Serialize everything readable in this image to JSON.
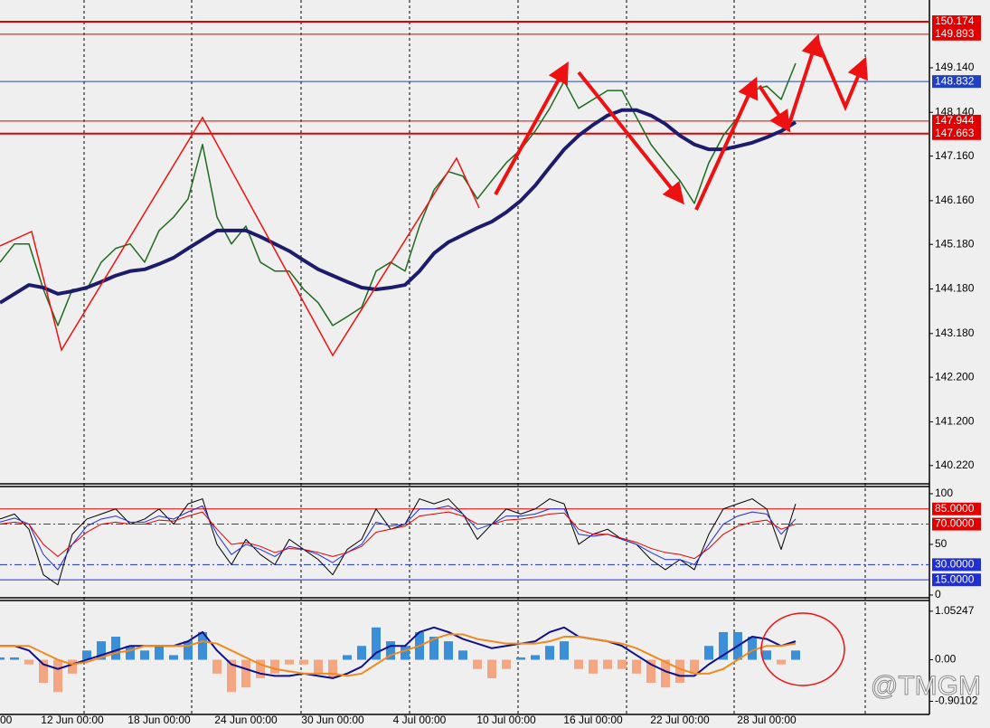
{
  "watermark": "@TMGM",
  "chart_data": [
    {
      "type": "line",
      "categories": [
        "00",
        null,
        null,
        null,
        null,
        "12 Jun 00:00",
        null,
        null,
        null,
        null,
        null,
        "18 Jun 00:00",
        null,
        null,
        null,
        null,
        null,
        "24 Jun 00:00",
        null,
        null,
        null,
        null,
        null,
        "30 Jun 00:00",
        null,
        null,
        null,
        null,
        null,
        "4 Jul 00:00",
        null,
        null,
        null,
        null,
        null,
        "10 Jul 00:00",
        null,
        null,
        null,
        null,
        null,
        "16 Jul 00:00",
        null,
        null,
        null,
        null,
        null,
        "22 Jul 00:00",
        null,
        null,
        null,
        null,
        null,
        "28 Jul 00:00",
        null,
        null
      ],
      "series": [
        {
          "color": "#1f6b1f",
          "width": 1.5,
          "values": [
            144.78,
            145.19,
            145.19,
            144.17,
            143.36,
            144.17,
            144.17,
            144.78,
            145.09,
            145.19,
            144.78,
            145.49,
            145.79,
            146.2,
            147.42,
            145.79,
            145.19,
            145.59,
            144.78,
            144.58,
            144.58,
            144.17,
            143.87,
            143.36,
            143.56,
            143.77,
            144.58,
            144.78,
            144.58,
            145.59,
            146.4,
            146.81,
            146.71,
            146.2,
            146.61,
            147.01,
            147.31,
            147.72,
            148.23,
            148.84,
            148.23,
            148.43,
            148.63,
            148.63,
            148.03,
            147.42,
            147.01,
            146.61,
            146.1,
            147.01,
            147.62,
            148.03,
            148.63,
            148.73,
            148.43,
            149.24
          ]
        },
        {
          "color": "#1c1c6b",
          "width": 4,
          "values": [
            143.87,
            144.07,
            144.27,
            144.21,
            144.07,
            144.13,
            144.21,
            144.34,
            144.48,
            144.58,
            144.62,
            144.74,
            144.88,
            145.09,
            145.29,
            145.49,
            145.49,
            145.49,
            145.35,
            145.19,
            145.03,
            144.82,
            144.62,
            144.48,
            144.34,
            144.21,
            144.17,
            144.21,
            144.27,
            144.58,
            144.98,
            145.23,
            145.39,
            145.55,
            145.69,
            145.9,
            146.16,
            146.5,
            146.91,
            147.31,
            147.62,
            147.86,
            148.07,
            148.19,
            148.19,
            148.07,
            147.88,
            147.62,
            147.42,
            147.31,
            147.31,
            147.38,
            147.46,
            147.58,
            147.72,
            147.92
          ]
        }
      ],
      "ylim": [
        139.81,
        150.66
      ],
      "yticks": [
        {
          "value": 149.14,
          "label": "149.140"
        },
        {
          "value": 148.14,
          "label": "148.140"
        },
        {
          "value": 147.16,
          "label": "147.160"
        },
        {
          "value": 146.16,
          "label": "146.160"
        },
        {
          "value": 145.18,
          "label": "145.180"
        },
        {
          "value": 144.18,
          "label": "144.180"
        },
        {
          "value": 143.18,
          "label": "143.180"
        },
        {
          "value": 142.2,
          "label": "142.200"
        },
        {
          "value": 141.2,
          "label": "141.200"
        },
        {
          "value": 140.22,
          "label": "140.220"
        }
      ],
      "levels": [
        {
          "value": 150.174,
          "color": "#e00000",
          "width": 2
        },
        {
          "value": 149.893,
          "color": "#e00000",
          "width": 1
        },
        {
          "value": 148.832,
          "color": "#2040c0",
          "width": 1
        },
        {
          "value": 147.944,
          "color": "#e00000",
          "width": 1
        },
        {
          "value": 147.663,
          "color": "#e00000",
          "width": 2
        }
      ]
    },
    {
      "type": "line",
      "series": [
        {
          "color": "#000000",
          "width": 1,
          "values": [
            75,
            80,
            65,
            20,
            10,
            60,
            75,
            80,
            85,
            70,
            75,
            85,
            70,
            90,
            95,
            50,
            30,
            55,
            40,
            30,
            55,
            45,
            35,
            20,
            45,
            55,
            85,
            65,
            70,
            95,
            90,
            95,
            80,
            55,
            70,
            85,
            80,
            85,
            95,
            90,
            50,
            60,
            65,
            55,
            50,
            35,
            25,
            35,
            25,
            60,
            85,
            90,
            95,
            85,
            45,
            90
          ]
        },
        {
          "color": "#1f2fd0",
          "width": 1,
          "values": [
            72,
            76,
            70,
            40,
            25,
            50,
            68,
            75,
            78,
            72,
            72,
            78,
            75,
            82,
            88,
            60,
            40,
            50,
            45,
            38,
            48,
            45,
            40,
            32,
            42,
            50,
            72,
            68,
            70,
            85,
            85,
            88,
            80,
            65,
            70,
            78,
            78,
            80,
            85,
            85,
            60,
            58,
            60,
            55,
            50,
            42,
            35,
            35,
            30,
            50,
            70,
            78,
            82,
            80,
            60,
            75
          ]
        },
        {
          "color": "#e00000",
          "width": 1,
          "values": [
            70,
            72,
            70,
            50,
            38,
            50,
            62,
            70,
            72,
            70,
            70,
            74,
            73,
            78,
            82,
            65,
            50,
            52,
            48,
            42,
            46,
            45,
            42,
            38,
            42,
            48,
            62,
            65,
            68,
            78,
            80,
            82,
            78,
            70,
            70,
            74,
            75,
            77,
            80,
            81,
            65,
            60,
            60,
            56,
            52,
            46,
            42,
            40,
            36,
            46,
            60,
            68,
            72,
            74,
            65,
            70
          ]
        }
      ],
      "ylim": [
        -2.7,
        107.1
      ],
      "yticks": [
        100,
        50,
        0
      ],
      "levels": [
        {
          "value": 85,
          "label": "85.0000",
          "color": "#e00000",
          "width": 1
        },
        {
          "value": 70,
          "label": "70.0000",
          "color": "#e00000",
          "width": 1,
          "style": "dashdot"
        },
        {
          "value": 30,
          "label": "30.0000",
          "color": "#1f2fd0",
          "width": 1,
          "style": "dashdot"
        },
        {
          "value": 15,
          "label": "15.0000",
          "color": "#1f2fd0",
          "width": 1
        }
      ]
    },
    {
      "type": "bar",
      "values": [
        0.05,
        0.05,
        -0.1,
        -0.5,
        -0.7,
        -0.3,
        0.2,
        0.4,
        0.5,
        0.3,
        0.2,
        0.3,
        0.1,
        0.4,
        0.6,
        -0.3,
        -0.7,
        -0.6,
        -0.4,
        -0.3,
        -0.1,
        -0.1,
        -0.3,
        -0.4,
        0.1,
        0.3,
        0.7,
        0.4,
        0.3,
        0.6,
        0.5,
        0.4,
        0.2,
        -0.2,
        -0.4,
        -0.2,
        0.05,
        0.1,
        0.3,
        0.4,
        -0.2,
        -0.3,
        -0.2,
        -0.2,
        -0.3,
        -0.5,
        -0.6,
        -0.5,
        -0.3,
        0.3,
        0.6,
        0.6,
        0.5,
        0.2,
        -0.1,
        0.2
      ],
      "up_color": "#3a8fd8",
      "down_color": "#f4a582",
      "series": [
        {
          "color": "#10108a",
          "width": 2,
          "values": [
            0.3,
            0.3,
            0.2,
            -0.1,
            -0.2,
            -0.1,
            0.0,
            0.1,
            0.2,
            0.3,
            0.3,
            0.3,
            0.3,
            0.4,
            0.6,
            0.2,
            -0.1,
            -0.2,
            -0.3,
            -0.35,
            -0.35,
            -0.3,
            -0.35,
            -0.4,
            -0.3,
            -0.15,
            0.15,
            0.3,
            0.3,
            0.6,
            0.7,
            0.6,
            0.45,
            0.35,
            0.25,
            0.3,
            0.35,
            0.4,
            0.6,
            0.7,
            0.5,
            0.45,
            0.4,
            0.3,
            0.1,
            -0.1,
            -0.25,
            -0.35,
            -0.35,
            -0.1,
            0.1,
            0.3,
            0.5,
            0.45,
            0.3,
            0.4
          ]
        },
        {
          "color": "#f08a1c",
          "width": 2,
          "values": [
            0.3,
            0.3,
            0.3,
            0.15,
            0.0,
            -0.1,
            -0.05,
            0.05,
            0.15,
            0.2,
            0.3,
            0.3,
            0.3,
            0.3,
            0.4,
            0.35,
            0.2,
            0.05,
            -0.1,
            -0.2,
            -0.25,
            -0.3,
            -0.3,
            -0.3,
            -0.35,
            -0.3,
            -0.1,
            0.1,
            0.2,
            0.3,
            0.45,
            0.55,
            0.55,
            0.45,
            0.4,
            0.35,
            0.35,
            0.35,
            0.4,
            0.5,
            0.5,
            0.45,
            0.4,
            0.35,
            0.25,
            0.1,
            -0.05,
            -0.2,
            -0.3,
            -0.3,
            -0.2,
            0.0,
            0.2,
            0.3,
            0.3,
            0.35
          ]
        }
      ],
      "ylim": [
        -1.186,
        1.285
      ],
      "yticks": [
        1.05247,
        {
          "value": 0,
          "label": "0.00"
        },
        -0.90102
      ]
    }
  ]
}
